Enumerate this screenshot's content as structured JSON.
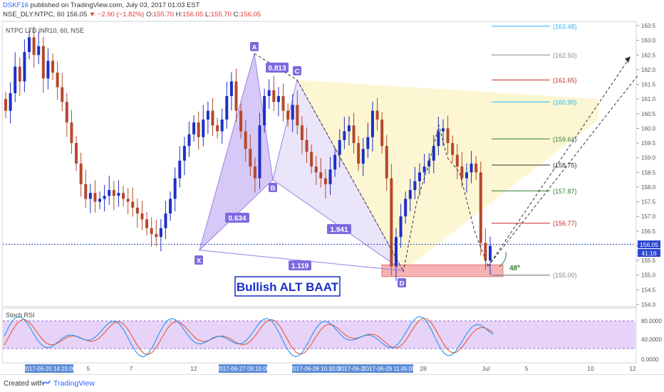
{
  "header": {
    "username": "DSKF16",
    "published": "published on TradingView.com, July 03, 2017 01:03 EST",
    "line2_prefix": "NSE_DLY:NTPC, 60",
    "last": "156.05",
    "change": "▼ −2.90 (−1.82%)",
    "o_label": "O:",
    "o": "155.70",
    "h_label": "H:",
    "h": "156.05",
    "l_label": "L:",
    "l": "155.70",
    "c_label": "C:",
    "c": "156.05"
  },
  "instrument_label": "NTPC LTD INR10, 60, NSE",
  "stoch_label": "Stoch RSI",
  "pattern_title": "Bullish ALT BAAT",
  "points": {
    "X": "X",
    "A": "A",
    "B": "B",
    "C": "C",
    "D": "D"
  },
  "ratios": {
    "xb": "0.634",
    "ac": "0.813",
    "bd": "1.941",
    "xd": "1.119"
  },
  "angle_label": "48º",
  "fib_levels": [
    "(163.48)",
    "(162.50)",
    "(161.65)",
    "(160.90)",
    "(159.64)",
    "(158.75)",
    "(157.87)",
    "(156.77)",
    "(155.00)"
  ],
  "colors": {
    "up": "#1e2fc7",
    "down": "#b5482c",
    "pattern": "#9b7fe6",
    "stoch_k": "#2196f3",
    "stoch_d": "#e55a3a",
    "price_line": "#2a46d0"
  },
  "price_axis": {
    "ticks": [
      "163.5",
      "163.0",
      "162.5",
      "162.0",
      "161.5",
      "161.0",
      "160.5",
      "160.0",
      "159.5",
      "159.0",
      "158.5",
      "158.0",
      "157.5",
      "157.0",
      "156.5",
      "156.0",
      "155.5",
      "155.0",
      "154.5",
      "154.0"
    ],
    "last_price": "156.05",
    "countdown": "41:16"
  },
  "stoch_axis": {
    "ticks": [
      "80.0000",
      "40.0000",
      "0.0000"
    ]
  },
  "time_axis": {
    "ticks": [
      "5",
      "7",
      "12",
      "28",
      "Jul",
      "5",
      "10",
      "12"
    ],
    "stamps": [
      "2017-06-20 14:15:00",
      "2017-06-27 09:15:00",
      "2017-06-28 10:30:00",
      "2017-06-28",
      "2017-06-29 11:45:00"
    ]
  },
  "footer": {
    "created_with": "Created with",
    "brand": "TradingView"
  },
  "chart_data": {
    "type": "candlestick",
    "symbol": "NSE_DLY:NTPC",
    "interval": "60",
    "ylim": [
      154.0,
      163.5
    ],
    "grid": false,
    "last": {
      "open": 155.7,
      "high": 156.05,
      "low": 155.7,
      "close": 156.05
    },
    "harmonic_pattern": {
      "name": "Bullish ALT BAAT",
      "points": [
        {
          "label": "X",
          "price": 155.85
        },
        {
          "label": "A",
          "price": 162.55
        },
        {
          "label": "B",
          "price": 158.25
        },
        {
          "label": "C",
          "price": 161.65
        },
        {
          "label": "D",
          "price": 155.15
        }
      ],
      "ratios": {
        "XB": 0.634,
        "AC": 0.813,
        "BD": 1.941,
        "XD": 1.119
      }
    },
    "fib_levels": [
      163.48,
      162.5,
      161.65,
      160.9,
      159.64,
      158.75,
      157.87,
      156.77,
      155.0
    ],
    "projection_angle_deg": 48,
    "close_series": [
      160.6,
      161.2,
      162.1,
      161.6,
      162.6,
      163.1,
      162.5,
      162.8,
      161.7,
      162.3,
      161.9,
      161.4,
      160.9,
      160.2,
      159.5,
      158.8,
      158.1,
      157.6,
      157.8,
      157.5,
      157.6,
      157.7,
      157.9,
      157.7,
      157.8,
      157.6,
      157.5,
      157.3,
      157.1,
      156.9,
      156.6,
      156.4,
      156.3,
      156.6,
      157.1,
      157.6,
      158.3,
      158.9,
      159.4,
      159.8,
      160.2,
      159.7,
      160.3,
      160.6,
      160.1,
      159.9,
      160.3,
      161.1,
      161.6,
      160.6,
      159.9,
      159.3,
      158.7,
      158.3,
      160.1,
      161.1,
      161.3,
      160.9,
      161.1,
      160.6,
      160.3,
      160.8,
      160.1,
      159.6,
      159.2,
      158.7,
      158.5,
      158.3,
      158.1,
      158.6,
      159.1,
      159.6,
      159.9,
      160.1,
      159.5,
      158.8,
      159.3,
      159.7,
      160.6,
      160.3,
      159.4,
      158.3,
      155.3,
      156.3,
      157.0,
      157.6,
      157.9,
      158.2,
      158.5,
      158.7,
      158.9,
      159.4,
      159.9,
      160.0,
      159.5,
      159.1,
      158.7,
      158.3,
      158.5,
      158.8,
      158.5,
      156.1,
      155.5,
      156.0
    ],
    "stoch_rsi_k_range": [
      0,
      100
    ],
    "stoch_rsi_bands": [
      80,
      20
    ]
  }
}
